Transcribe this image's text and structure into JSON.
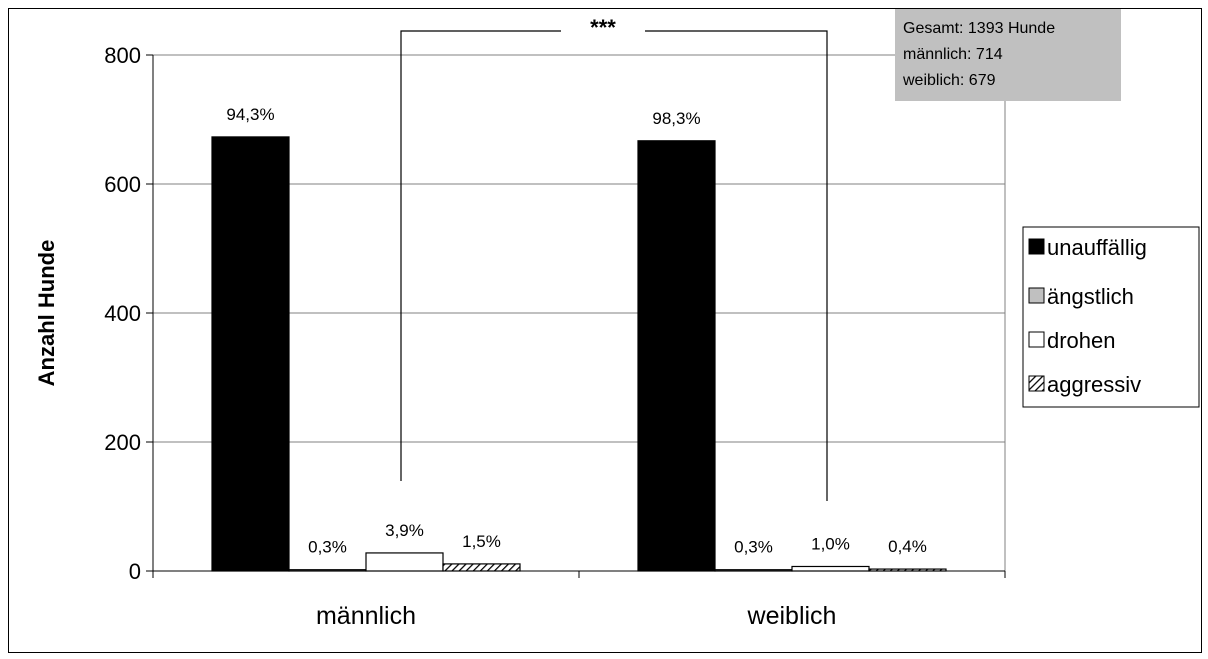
{
  "chart_data": {
    "type": "bar",
    "ylabel": "Anzahl Hunde",
    "xlabel": "",
    "ylim": [
      0,
      800
    ],
    "yticks": [
      "0",
      "200",
      "400",
      "600",
      "800"
    ],
    "grid": true,
    "legend_position": "right",
    "categories": [
      "männlich",
      "weiblich"
    ],
    "series": [
      {
        "name": "unauffällig",
        "values": [
          673,
          667
        ],
        "labels": [
          "94,3%",
          "98,3%"
        ],
        "color": "#000000",
        "pattern": "solid"
      },
      {
        "name": "ängstlich",
        "values": [
          2,
          2
        ],
        "labels": [
          "0,3%",
          "0,3%"
        ],
        "color": "#c0c0c0",
        "pattern": "solid"
      },
      {
        "name": "drohen",
        "values": [
          28,
          7
        ],
        "labels": [
          "3,9%",
          "1,0%"
        ],
        "color": "#ffffff",
        "pattern": "solid"
      },
      {
        "name": "aggressiv",
        "values": [
          11,
          3
        ],
        "labels": [
          "1,5%",
          "0,4%"
        ],
        "color": "#ffffff",
        "pattern": "hatch"
      }
    ],
    "annotations": {
      "significance": "***",
      "info_box": [
        "Gesamt: 1393  Hunde",
        "männlich: 714",
        "weiblich: 679"
      ]
    }
  }
}
